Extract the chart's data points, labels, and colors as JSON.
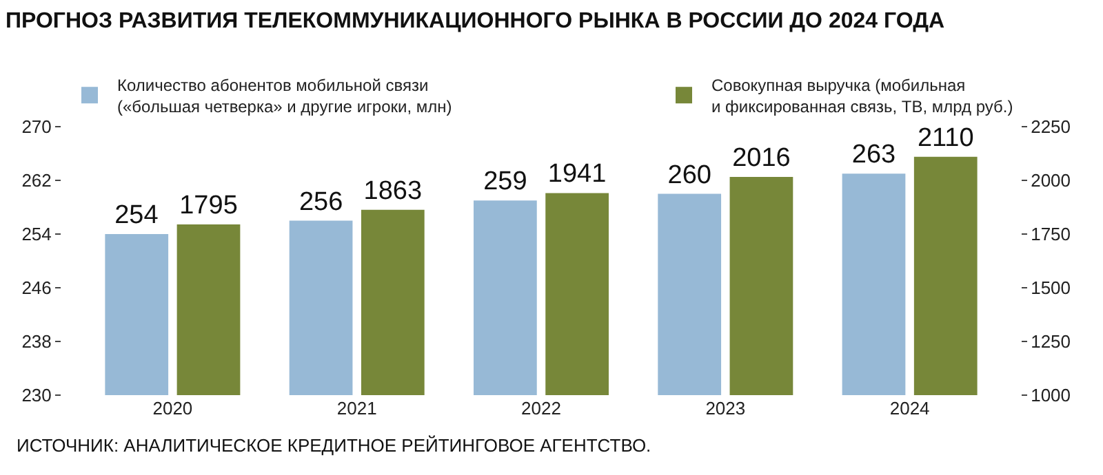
{
  "chart_data": {
    "type": "bar",
    "title": "ПРОГНОЗ РАЗВИТИЯ ТЕЛЕКОММУНИКАЦИОННОГО РЫНКА В РОССИИ ДО 2024 ГОДА",
    "categories": [
      "2020",
      "2021",
      "2022",
      "2023",
      "2024"
    ],
    "series": [
      {
        "name": "Количество абонентов мобильной связи\n(«большая четверка» и другие игроки, млн)",
        "color": "#97b9d6",
        "values": [
          254,
          256,
          259,
          260,
          263
        ]
      },
      {
        "name": "Совокупная выручка (мобильная\nи фиксированная связь, ТВ, млрд руб.)",
        "color": "#778739",
        "values": [
          1795,
          1863,
          1941,
          2016,
          2110
        ],
        "axis": "y2"
      }
    ],
    "ylim": [
      230,
      270
    ],
    "yticks": [
      230,
      238,
      246,
      254,
      262,
      270
    ],
    "y2lim": [
      1000,
      2250
    ],
    "y2ticks": [
      1000,
      1250,
      1500,
      1750,
      2000,
      2250
    ],
    "data_labels": true,
    "legend": "top",
    "annotations": [
      "ИСТОЧНИК: АНАЛИТИЧЕСКОЕ КРЕДИТНОЕ РЕЙТИНГОВОЕ АГЕНТСТВО."
    ]
  }
}
